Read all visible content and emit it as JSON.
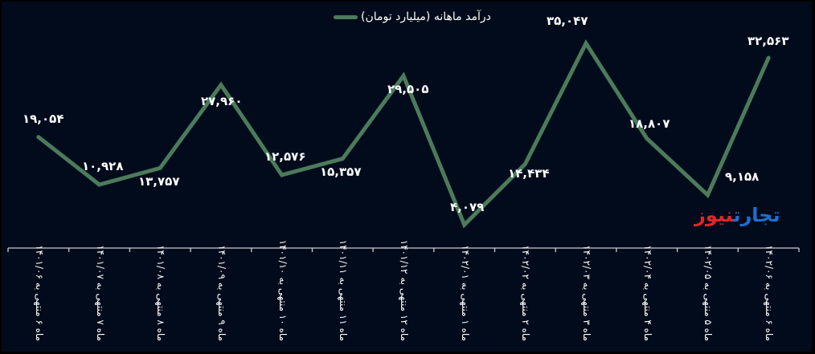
{
  "chart_data": {
    "type": "line",
    "title": "",
    "xlabel": "",
    "ylabel": "",
    "legend": {
      "position": "top",
      "entries": [
        "درآمد ماهانه (میلیارد تومان)"
      ]
    },
    "grid": false,
    "categories": [
      "ماه ۶ منتهی به ۱۴۰۱/۰۶",
      "ماه ۷ منتهی به ۱۴۰۱/۰۷",
      "ماه ۸ منتهی به ۱۴۰۱/۰۸",
      "ماه ۹ منتهی به ۱۴۰۱/۰۹",
      "ماه ۱۰ منتهی به ۱۴۰۱/۱۰",
      "ماه ۱۱ منتهی به ۱۴۰۱/۱۱",
      "ماه ۱۲ منتهی به ۱۴۰۱/۱۲",
      "ماه ۱ منتهی به ۱۴۰۲/۰۱",
      "ماه ۲ منتهی به ۱۴۰۲/۰۲",
      "ماه ۳ منتهی به ۱۴۰۲/۰۳",
      "ماه ۴ منتهی به ۱۴۰۲/۰۴",
      "ماه ۵ منتهی به ۱۴۰۲/۰۵",
      "ماه ۶ منتهی به ۱۴۰۲/۰۶"
    ],
    "series": [
      {
        "name": "درآمد ماهانه (میلیارد تومان)",
        "color": "#4b7b5b",
        "values": [
          19054,
          10928,
          13757,
          27960,
          12576,
          15357,
          29505,
          4079,
          14434,
          35047,
          18807,
          9158,
          32563
        ],
        "data_labels": [
          "۱۹,۰۵۴",
          "۱۰,۹۲۸",
          "۱۳,۷۵۷",
          "۲۷,۹۶۰",
          "۱۲,۵۷۶",
          "۱۵,۳۵۷",
          "۲۹,۵۰۵",
          "۴,۰۷۹",
          "۱۴,۴۳۴",
          "۳۵,۰۴۷",
          "۱۸,۸۰۷",
          "۹,۱۵۸",
          "۳۲,۵۶۳"
        ]
      }
    ],
    "ylim": [
      0,
      40000
    ]
  },
  "legend": {
    "label": "درآمد ماهانه (میلیارد تومان)"
  },
  "watermark": {
    "part1": "تجارت",
    "part2": "نیوز"
  },
  "colors": {
    "background": "#020b1b",
    "line": "#4b7b5b",
    "axis": "#c8ccd4",
    "text": "#ffffff",
    "logo_blue": "#1e6fd0",
    "logo_red": "#e0262c"
  }
}
